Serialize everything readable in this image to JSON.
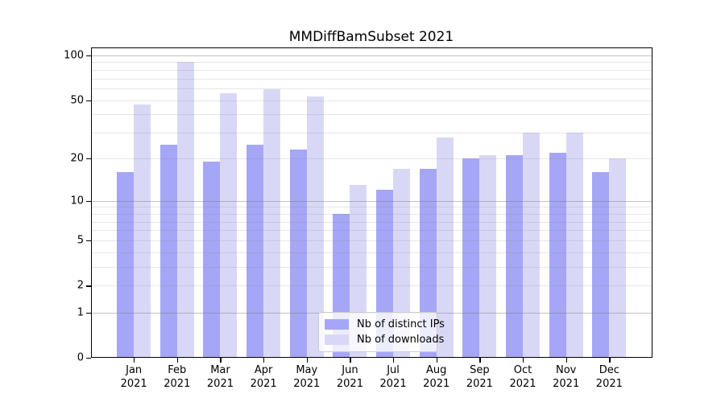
{
  "title": "MMDiffBamSubset 2021",
  "chart_data": {
    "type": "bar",
    "title": "MMDiffBamSubset 2021",
    "categories": [
      "Jan 2021",
      "Feb 2021",
      "Mar 2021",
      "Apr 2021",
      "May 2021",
      "Jun 2021",
      "Jul 2021",
      "Aug 2021",
      "Sep 2021",
      "Oct 2021",
      "Nov 2021",
      "Dec 2021"
    ],
    "x_tick_month": [
      "Jan",
      "Feb",
      "Mar",
      "Apr",
      "May",
      "Jun",
      "Jul",
      "Aug",
      "Sep",
      "Oct",
      "Nov",
      "Dec"
    ],
    "x_tick_year": "2021",
    "series": [
      {
        "name": "Nb of distinct IPs",
        "color": "#a6a6f6",
        "values": [
          16,
          25,
          19,
          25,
          23,
          8,
          12,
          17,
          20,
          21,
          22,
          16
        ]
      },
      {
        "name": "Nb of downloads",
        "color": "#d8d8f6",
        "values": [
          47,
          90,
          56,
          59,
          53,
          13,
          17,
          28,
          21,
          30,
          30,
          20
        ]
      }
    ],
    "xlabel": "",
    "ylabel": "",
    "ylim": [
      0,
      100
    ],
    "y_scale": "log10(value+1)",
    "y_ticks": [
      100,
      50,
      20,
      10,
      5,
      2,
      1,
      0
    ],
    "y_major_gridlines": [
      1,
      10,
      100
    ],
    "y_minor_gridlines": [
      2,
      3,
      4,
      5,
      6,
      7,
      8,
      9,
      20,
      30,
      40,
      50,
      60,
      70,
      80,
      90
    ],
    "grid": "horizontal",
    "legend_position": "lower-center-inside",
    "colors": {
      "bar_dark": "#a6a6f6",
      "bar_light": "#d8d8f6",
      "major_grid": "rgba(120,120,120,0.45)",
      "minor_grid": "rgba(120,120,120,0.18)",
      "axis": "#000000",
      "background": "#ffffff"
    }
  },
  "legend": {
    "item1": "Nb of distinct IPs",
    "item2": "Nb of downloads"
  }
}
